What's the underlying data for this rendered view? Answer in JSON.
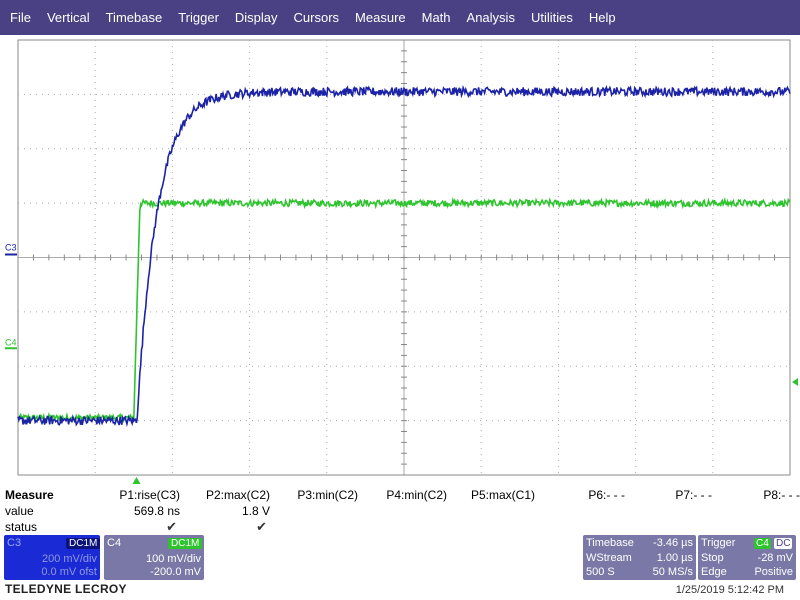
{
  "menu": [
    "File",
    "Vertical",
    "Timebase",
    "Trigger",
    "Display",
    "Cursors",
    "Measure",
    "Math",
    "Analysis",
    "Utilities",
    "Help"
  ],
  "channels": {
    "c3": {
      "label": "C3",
      "color": "#1c23a6"
    },
    "c4": {
      "label": "C4",
      "color": "#2fc42f"
    }
  },
  "trigger_marker_color": "#2fc42f",
  "measure": {
    "title": "Measure",
    "row_labels": {
      "value": "value",
      "status": "status"
    },
    "params": [
      {
        "name": "P1:rise(C3)",
        "value": "569.8 ns",
        "status": "check"
      },
      {
        "name": "P2:max(C2)",
        "value": "1.8 V",
        "status": "check"
      },
      {
        "name": "P3:min(C2)",
        "value": "",
        "status": ""
      },
      {
        "name": "P4:min(C2)",
        "value": "",
        "status": ""
      },
      {
        "name": "P5:max(C1)",
        "value": "",
        "status": ""
      },
      {
        "name": "P6:- - -",
        "value": "",
        "status": ""
      },
      {
        "name": "P7:- - -",
        "value": "",
        "status": ""
      },
      {
        "name": "P8:- - -",
        "value": "",
        "status": ""
      }
    ],
    "check_glyph": "✔"
  },
  "c3_box": {
    "label": "C3",
    "coupling": "DC1M",
    "vdiv": "200 mV/div",
    "offset": "0.0 mV ofst",
    "color": "#1a2bd6"
  },
  "c4_box": {
    "label": "C4",
    "coupling": "DC1M",
    "vdiv": "100 mV/div",
    "offset": "-200.0 mV",
    "color": "#7a78a6"
  },
  "timebase": {
    "label": "Timebase",
    "delay": "-3.46 µs",
    "mode": "WStream",
    "tdiv": "1.00 µs",
    "samples": "500 S",
    "rate": "50 MS/s"
  },
  "trigger": {
    "label": "Trigger",
    "source": "C4",
    "coupling": "DC",
    "state": "Stop",
    "level": "-28 mV",
    "type": "Edge",
    "slope": "Positive"
  },
  "brand": "TELEDYNE LECROY",
  "timestamp": "1/25/2019 5:12:42 PM",
  "waveforms": {
    "c3": {
      "pre_level_div": -3.0,
      "rise_start_us": -3.46,
      "final_level_div": 3.05,
      "time_constant_us": 0.26,
      "noise_div": 0.08
    },
    "c4": {
      "pre_level_div": -2.95,
      "edge_start_us": -3.5,
      "edge_end_us": -3.42,
      "final_level_div": 1.0,
      "noise_div": 0.06
    }
  }
}
